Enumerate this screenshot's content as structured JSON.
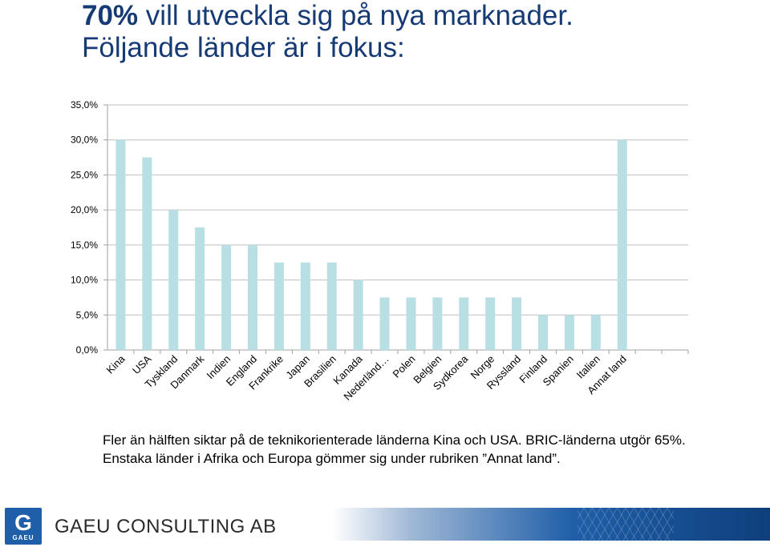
{
  "slide": {
    "title_highlight": "70%",
    "title_line1_rest": " vill utveckla sig på nya marknader.",
    "title_line2": "Följande länder är i fokus:",
    "caption": "Fler än hälften siktar på de teknikorienterade länderna Kina och USA. BRIC-länderna utgör 65%. Enstaka länder i Afrika och Europa gömmer sig under rubriken ”Annat land”."
  },
  "footer": {
    "logo_letter": "G",
    "logo_text": "GAEU",
    "company": "GAEU CONSULTING AB"
  },
  "colors": {
    "title": "#163a74",
    "bar": "#b8dfe3",
    "grid": "#bfbfbf",
    "axis": "#a0a0a0",
    "brand_blue": "#1f5ea8"
  },
  "chart_data": {
    "type": "bar",
    "categories": [
      "Kina",
      "USA",
      "Tyskland",
      "Danmark",
      "Indien",
      "England",
      "Frankrike",
      "Japan",
      "Brasilien",
      "Kanada",
      "Nederländ…",
      "Polen",
      "Belgien",
      "Sydkorea",
      "Norge",
      "Ryssland",
      "Finland",
      "Spanien",
      "Italien",
      "Annat land",
      "",
      ""
    ],
    "values": [
      30.0,
      27.5,
      20.0,
      17.5,
      15.0,
      15.0,
      12.5,
      12.5,
      12.5,
      10.0,
      7.5,
      7.5,
      7.5,
      7.5,
      7.5,
      7.5,
      5.0,
      5.0,
      5.0,
      30.0,
      null,
      null
    ],
    "ylim": [
      0,
      35
    ],
    "yticks": [
      "0,0%",
      "5,0%",
      "10,0%",
      "15,0%",
      "20,0%",
      "25,0%",
      "30,0%",
      "35,0%"
    ],
    "grid": true,
    "legend": "none",
    "title": "",
    "xlabel": "",
    "ylabel": ""
  }
}
